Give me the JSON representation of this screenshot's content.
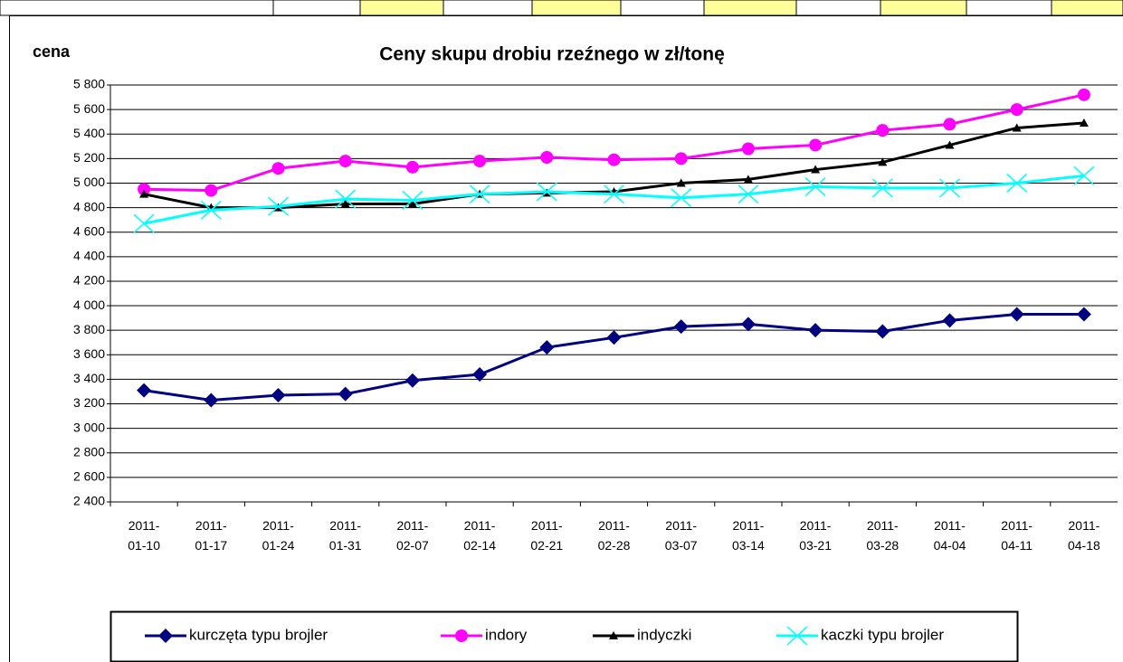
{
  "chart_data": {
    "type": "line",
    "title": "Ceny skupu drobiu rzeźnego w zł/tonę",
    "y_label": "cena",
    "categories": [
      "2011-01-10",
      "2011-01-17",
      "2011-01-24",
      "2011-01-31",
      "2011-02-07",
      "2011-02-14",
      "2011-02-21",
      "2011-02-28",
      "2011-03-07",
      "2011-03-14",
      "2011-03-21",
      "2011-03-28",
      "2011-04-04",
      "2011-04-11",
      "2011-04-18"
    ],
    "series": [
      {
        "name": "kurczęta typu brojler",
        "color": "#000080",
        "marker": "diamond",
        "values": [
          3310,
          3230,
          3270,
          3280,
          3390,
          3440,
          3660,
          3740,
          3830,
          3850,
          3800,
          3790,
          3880,
          3930,
          3930
        ]
      },
      {
        "name": "indory",
        "color": "#ff00ff",
        "marker": "circle",
        "values": [
          4950,
          4940,
          5120,
          5180,
          5130,
          5180,
          5210,
          5190,
          5200,
          5280,
          5310,
          5430,
          5480,
          5600,
          5720
        ]
      },
      {
        "name": "indyczki",
        "color": "#000000",
        "marker": "triangle",
        "values": [
          4910,
          4800,
          4800,
          4830,
          4830,
          4910,
          4920,
          4930,
          5000,
          5030,
          5110,
          5170,
          5310,
          5450,
          5490
        ]
      },
      {
        "name": "kaczki typu brojler",
        "color": "#00ffff",
        "marker": "x",
        "values": [
          4670,
          4780,
          4810,
          4870,
          4860,
          4910,
          4930,
          4910,
          4880,
          4910,
          4970,
          4960,
          4960,
          5000,
          5060
        ]
      }
    ],
    "ylim": [
      2400,
      5800
    ],
    "yticks": [
      {
        "value": 2400,
        "label": "2 400"
      },
      {
        "value": 2600,
        "label": "2 600"
      },
      {
        "value": 2800,
        "label": "2 800"
      },
      {
        "value": 3000,
        "label": "3 000"
      },
      {
        "value": 3200,
        "label": "3 200"
      },
      {
        "value": 3400,
        "label": "3 400"
      },
      {
        "value": 3600,
        "label": "3 600"
      },
      {
        "value": 3800,
        "label": "3 800"
      },
      {
        "value": 4000,
        "label": "4 000"
      },
      {
        "value": 4200,
        "label": "4 200"
      },
      {
        "value": 4400,
        "label": "4 400"
      },
      {
        "value": 4600,
        "label": "4 600"
      },
      {
        "value": 4800,
        "label": "4 800"
      },
      {
        "value": 5000,
        "label": "5 000"
      },
      {
        "value": 5200,
        "label": "5 200"
      },
      {
        "value": 5400,
        "label": "5 400"
      },
      {
        "value": 5600,
        "label": "5 600"
      },
      {
        "value": 5800,
        "label": "5 800"
      }
    ],
    "grid": true,
    "legend": "bottom"
  }
}
